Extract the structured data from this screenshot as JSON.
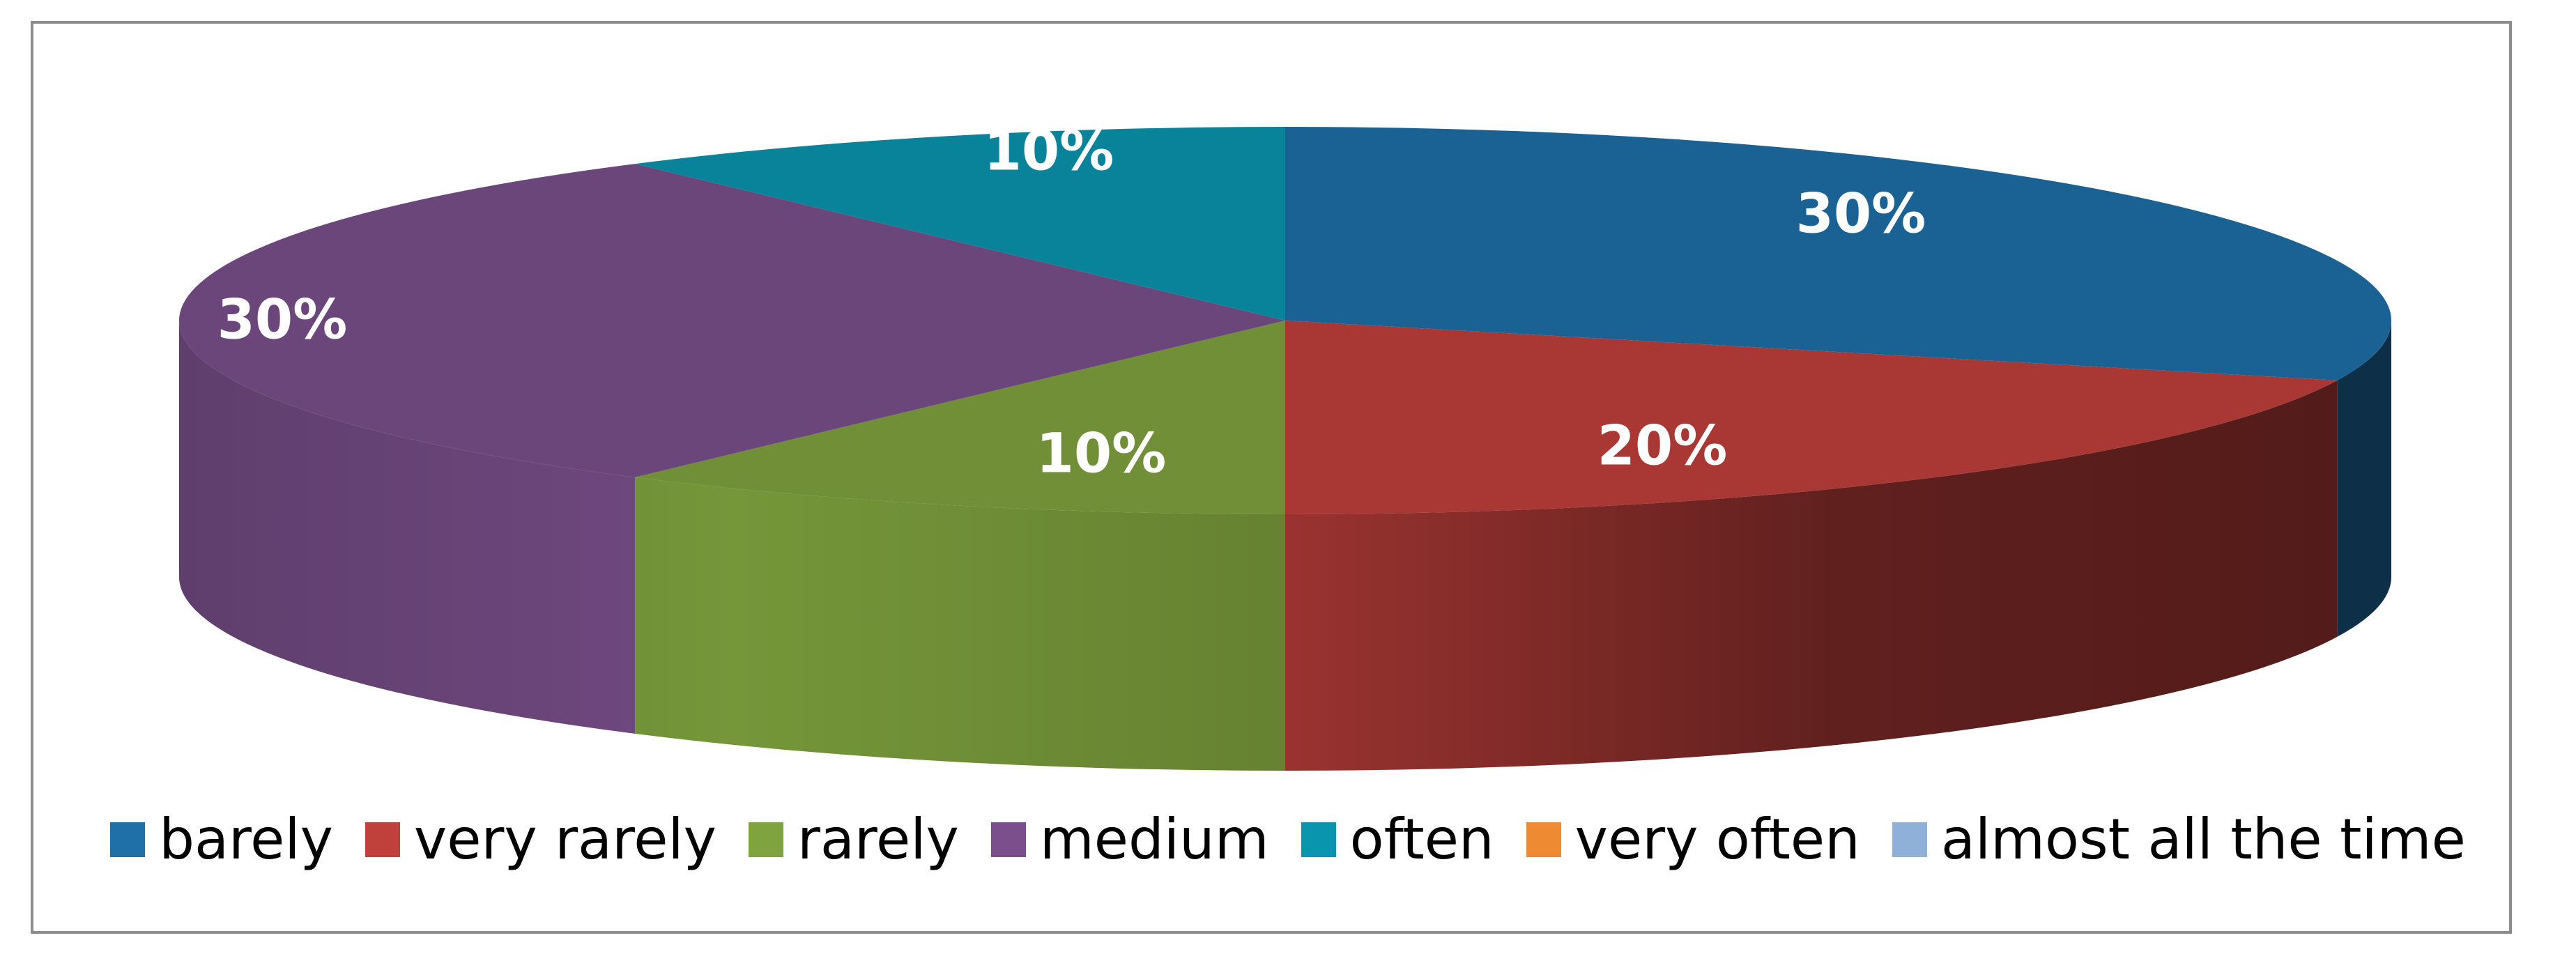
{
  "chart_data": {
    "type": "pie",
    "style": "3d",
    "title": "",
    "slices": [
      {
        "name": "barely",
        "value": 30,
        "label": "30%",
        "color": "#1F6FA8"
      },
      {
        "name": "very rarely",
        "value": 20,
        "label": "20%",
        "color": "#C0403C"
      },
      {
        "name": "rarely",
        "value": 10,
        "label": "10%",
        "color": "#7FA33E"
      },
      {
        "name": "medium",
        "value": 30,
        "label": "30%",
        "color": "#7A4F8C"
      },
      {
        "name": "often",
        "value": 10,
        "label": "10%",
        "color": "#0A95AE"
      },
      {
        "name": "very often",
        "value": 0,
        "label": "",
        "color": "#EE8A32"
      },
      {
        "name": "almost all the time",
        "value": 0,
        "label": "",
        "color": "#8FB0D8"
      }
    ],
    "legend": {
      "placement": "bottom",
      "entries": [
        {
          "label": "barely",
          "color": "#1F6FA8"
        },
        {
          "label": "very rarely",
          "color": "#C0403C"
        },
        {
          "label": "rarely",
          "color": "#7FA33E"
        },
        {
          "label": "medium",
          "color": "#7A4F8C"
        },
        {
          "label": "often",
          "color": "#0A95AE"
        },
        {
          "label": "very often",
          "color": "#EE8A32"
        },
        {
          "label": "almost all the time",
          "color": "#8FB0D8"
        }
      ]
    }
  }
}
